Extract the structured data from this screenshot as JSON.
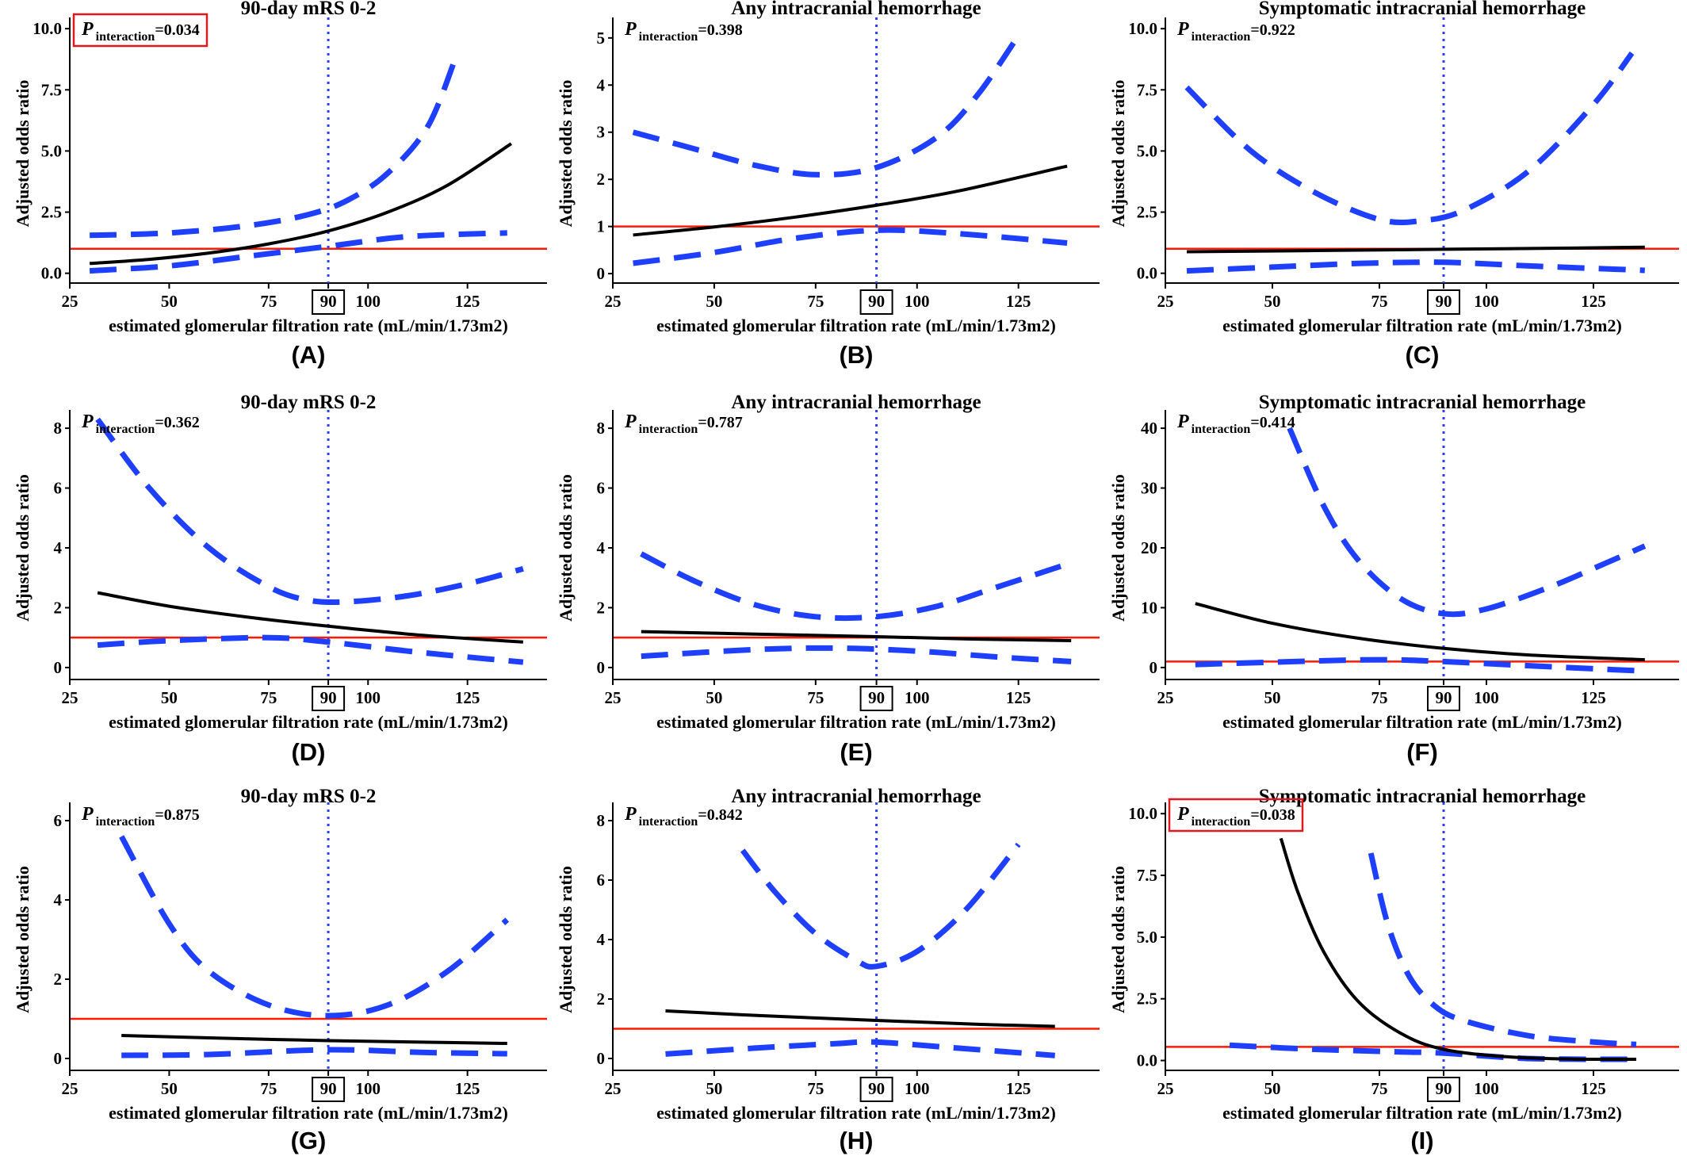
{
  "colors": {
    "estimate": "#000000",
    "confidence_band": "#1f3fff",
    "reference_line": "#ff1a00",
    "cutoff_line": "#2b3cff",
    "highlight_box": "#e0191f"
  },
  "chart_data": [
    {
      "panel": "(A)",
      "type": "line",
      "title": "90-day mRS 0-2",
      "xlabel": "estimated glomerular filtration rate (mL/min/1.73m2)",
      "ylabel": "Adjusted odds ratio",
      "p_label": "P",
      "p_sub": "interaction",
      "p_value": "=0.034",
      "p_highlight": true,
      "xlim": [
        25,
        145
      ],
      "ylim": [
        -0.4,
        10.2
      ],
      "xticks": [
        "25",
        "50",
        "75",
        "90",
        "100",
        "125"
      ],
      "boxed_tick": "90",
      "yticks": [
        "0.0",
        "2.5",
        "5.0",
        "7.5",
        "10.0"
      ],
      "ref_y": 1,
      "cutoff_x": 90,
      "estimate": [
        [
          30,
          0.4
        ],
        [
          45,
          0.57
        ],
        [
          60,
          0.83
        ],
        [
          75,
          1.2
        ],
        [
          90,
          1.73
        ],
        [
          105,
          2.5
        ],
        [
          120,
          3.6
        ],
        [
          136,
          5.3
        ]
      ],
      "ci_upper": [
        [
          30,
          1.55
        ],
        [
          50,
          1.65
        ],
        [
          70,
          1.95
        ],
        [
          85,
          2.4
        ],
        [
          95,
          3.0
        ],
        [
          105,
          4.1
        ],
        [
          115,
          6.0
        ],
        [
          122,
          8.8
        ]
      ],
      "ci_lower": [
        [
          30,
          0.1
        ],
        [
          50,
          0.3
        ],
        [
          70,
          0.7
        ],
        [
          90,
          1.1
        ],
        [
          110,
          1.5
        ],
        [
          135,
          1.65
        ]
      ]
    },
    {
      "panel": "(B)",
      "type": "line",
      "title": "Any intracranial hemorrhage",
      "xlabel": "estimated glomerular filtration rate (mL/min/1.73m2)",
      "ylabel": "Adjusted odds ratio",
      "p_label": "P",
      "p_sub": "interaction",
      "p_value": "=0.398",
      "p_highlight": false,
      "xlim": [
        25,
        145
      ],
      "ylim": [
        -0.2,
        5.3
      ],
      "xticks": [
        "25",
        "50",
        "75",
        "90",
        "100",
        "125"
      ],
      "boxed_tick": "90",
      "yticks": [
        "0",
        "1",
        "2",
        "3",
        "4",
        "5"
      ],
      "ref_y": 1,
      "cutoff_x": 90,
      "estimate": [
        [
          30,
          0.82
        ],
        [
          50,
          0.99
        ],
        [
          70,
          1.2
        ],
        [
          90,
          1.45
        ],
        [
          110,
          1.75
        ],
        [
          137,
          2.28
        ]
      ],
      "ci_upper": [
        [
          30,
          3.0
        ],
        [
          45,
          2.65
        ],
        [
          60,
          2.3
        ],
        [
          75,
          2.1
        ],
        [
          90,
          2.25
        ],
        [
          105,
          2.9
        ],
        [
          115,
          3.8
        ],
        [
          125,
          5.05
        ]
      ],
      "ci_lower": [
        [
          30,
          0.22
        ],
        [
          50,
          0.45
        ],
        [
          70,
          0.75
        ],
        [
          90,
          0.92
        ],
        [
          110,
          0.85
        ],
        [
          137,
          0.65
        ]
      ]
    },
    {
      "panel": "(C)",
      "type": "line",
      "title": "Symptomatic intracranial hemorrhage",
      "xlabel": "estimated glomerular filtration rate (mL/min/1.73m2)",
      "ylabel": "Adjusted odds ratio",
      "p_label": "P",
      "p_sub": "interaction",
      "p_value": "=0.922",
      "p_highlight": false,
      "xlim": [
        25,
        145
      ],
      "ylim": [
        -0.4,
        10.2
      ],
      "xticks": [
        "25",
        "50",
        "75",
        "90",
        "100",
        "125"
      ],
      "boxed_tick": "90",
      "yticks": [
        "0.0",
        "2.5",
        "5.0",
        "7.5",
        "10.0"
      ],
      "ref_y": 1,
      "cutoff_x": 90,
      "estimate": [
        [
          30,
          0.88
        ],
        [
          60,
          0.93
        ],
        [
          90,
          0.98
        ],
        [
          120,
          1.03
        ],
        [
          137,
          1.07
        ]
      ],
      "ci_upper": [
        [
          30,
          7.6
        ],
        [
          45,
          5.0
        ],
        [
          60,
          3.3
        ],
        [
          75,
          2.2
        ],
        [
          85,
          2.15
        ],
        [
          95,
          2.6
        ],
        [
          110,
          4.2
        ],
        [
          125,
          6.9
        ],
        [
          134,
          9.0
        ]
      ],
      "ci_lower": [
        [
          30,
          0.1
        ],
        [
          50,
          0.25
        ],
        [
          70,
          0.4
        ],
        [
          90,
          0.45
        ],
        [
          110,
          0.3
        ],
        [
          137,
          0.12
        ]
      ]
    },
    {
      "panel": "(D)",
      "type": "line",
      "title": "90-day mRS 0-2",
      "xlabel": "estimated glomerular filtration rate (mL/min/1.73m2)",
      "ylabel": "Adjusted odds ratio",
      "p_label": "P",
      "p_sub": "interaction",
      "p_value": "=0.362",
      "p_highlight": false,
      "xlim": [
        25,
        145
      ],
      "ylim": [
        -0.4,
        8.4
      ],
      "xticks": [
        "25",
        "50",
        "75",
        "90",
        "100",
        "125"
      ],
      "boxed_tick": "90",
      "yticks": [
        "0",
        "2",
        "4",
        "6",
        "8"
      ],
      "ref_y": 1,
      "cutoff_x": 90,
      "estimate": [
        [
          32,
          2.5
        ],
        [
          50,
          2.05
        ],
        [
          70,
          1.68
        ],
        [
          90,
          1.38
        ],
        [
          110,
          1.12
        ],
        [
          125,
          0.97
        ],
        [
          139,
          0.85
        ]
      ],
      "ci_upper": [
        [
          32,
          8.3
        ],
        [
          45,
          6.0
        ],
        [
          60,
          4.0
        ],
        [
          75,
          2.7
        ],
        [
          85,
          2.25
        ],
        [
          95,
          2.2
        ],
        [
          110,
          2.4
        ],
        [
          125,
          2.8
        ],
        [
          139,
          3.3
        ]
      ],
      "ci_lower": [
        [
          32,
          0.75
        ],
        [
          50,
          0.9
        ],
        [
          75,
          1.0
        ],
        [
          90,
          0.85
        ],
        [
          110,
          0.55
        ],
        [
          125,
          0.35
        ],
        [
          139,
          0.18
        ]
      ]
    },
    {
      "panel": "(E)",
      "type": "line",
      "title": "Any intracranial hemorrhage",
      "xlabel": "estimated glomerular filtration rate (mL/min/1.73m2)",
      "ylabel": "Adjusted odds ratio",
      "p_label": "P",
      "p_sub": "interaction",
      "p_value": "=0.787",
      "p_highlight": false,
      "xlim": [
        25,
        145
      ],
      "ylim": [
        -0.4,
        8.4
      ],
      "xticks": [
        "25",
        "50",
        "75",
        "90",
        "100",
        "125"
      ],
      "boxed_tick": "90",
      "yticks": [
        "0",
        "2",
        "4",
        "6",
        "8"
      ],
      "ref_y": 1,
      "cutoff_x": 90,
      "estimate": [
        [
          32,
          1.2
        ],
        [
          60,
          1.12
        ],
        [
          90,
          1.03
        ],
        [
          115,
          0.95
        ],
        [
          138,
          0.9
        ]
      ],
      "ci_upper": [
        [
          32,
          3.8
        ],
        [
          45,
          2.9
        ],
        [
          60,
          2.1
        ],
        [
          75,
          1.7
        ],
        [
          90,
          1.7
        ],
        [
          105,
          2.05
        ],
        [
          120,
          2.7
        ],
        [
          138,
          3.5
        ]
      ],
      "ci_lower": [
        [
          32,
          0.38
        ],
        [
          60,
          0.6
        ],
        [
          80,
          0.65
        ],
        [
          100,
          0.55
        ],
        [
          120,
          0.35
        ],
        [
          138,
          0.2
        ]
      ]
    },
    {
      "panel": "(F)",
      "type": "line",
      "title": "Symptomatic intracranial hemorrhage",
      "xlabel": "estimated glomerular filtration rate (mL/min/1.73m2)",
      "ylabel": "Adjusted odds ratio",
      "p_label": "P",
      "p_sub": "interaction",
      "p_value": "=0.414",
      "p_highlight": false,
      "xlim": [
        25,
        145
      ],
      "ylim": [
        -2,
        42
      ],
      "xticks": [
        "25",
        "50",
        "75",
        "90",
        "100",
        "125"
      ],
      "boxed_tick": "90",
      "yticks": [
        "0",
        "10",
        "20",
        "30",
        "40"
      ],
      "ref_y": 1,
      "cutoff_x": 90,
      "estimate": [
        [
          32,
          10.7
        ],
        [
          50,
          7.4
        ],
        [
          70,
          4.9
        ],
        [
          90,
          3.2
        ],
        [
          110,
          2.1
        ],
        [
          137,
          1.3
        ]
      ],
      "ci_upper": [
        [
          54,
          40
        ],
        [
          62,
          27
        ],
        [
          70,
          18
        ],
        [
          80,
          11.5
        ],
        [
          90,
          9.0
        ],
        [
          100,
          9.8
        ],
        [
          115,
          13.5
        ],
        [
          128,
          17.5
        ],
        [
          137,
          20.3
        ]
      ],
      "ci_lower": [
        [
          32,
          0.5
        ],
        [
          55,
          1.0
        ],
        [
          75,
          1.3
        ],
        [
          90,
          1.0
        ],
        [
          110,
          0.3
        ],
        [
          137,
          -0.6
        ]
      ]
    },
    {
      "panel": "(G)",
      "type": "line",
      "title": "90-day mRS 0-2",
      "xlabel": "estimated glomerular filtration rate (mL/min/1.73m2)",
      "ylabel": "Adjusted odds ratio",
      "p_label": "P",
      "p_sub": "interaction",
      "p_value": "=0.875",
      "p_highlight": false,
      "xlim": [
        25,
        145
      ],
      "ylim": [
        -0.3,
        6.3
      ],
      "xticks": [
        "25",
        "50",
        "75",
        "90",
        "100",
        "125"
      ],
      "boxed_tick": "90",
      "yticks": [
        "0",
        "2",
        "4",
        "6"
      ],
      "ref_y": 1,
      "cutoff_x": 90,
      "estimate": [
        [
          38,
          0.58
        ],
        [
          60,
          0.52
        ],
        [
          90,
          0.45
        ],
        [
          115,
          0.41
        ],
        [
          135,
          0.38
        ]
      ],
      "ci_upper": [
        [
          38,
          5.6
        ],
        [
          50,
          3.4
        ],
        [
          60,
          2.2
        ],
        [
          75,
          1.35
        ],
        [
          90,
          1.08
        ],
        [
          105,
          1.35
        ],
        [
          120,
          2.2
        ],
        [
          135,
          3.5
        ]
      ],
      "ci_lower": [
        [
          38,
          0.08
        ],
        [
          60,
          0.1
        ],
        [
          90,
          0.22
        ],
        [
          115,
          0.15
        ],
        [
          135,
          0.12
        ]
      ]
    },
    {
      "panel": "(H)",
      "type": "line",
      "title": "Any intracranial hemorrhage",
      "xlabel": "estimated glomerular filtration rate (mL/min/1.73m2)",
      "ylabel": "Adjusted odds ratio",
      "p_label": "P",
      "p_sub": "interaction",
      "p_value": "=0.842",
      "p_highlight": false,
      "xlim": [
        25,
        145
      ],
      "ylim": [
        -0.4,
        8.4
      ],
      "xticks": [
        "25",
        "50",
        "75",
        "90",
        "100",
        "125"
      ],
      "boxed_tick": "90",
      "yticks": [
        "0",
        "2",
        "4",
        "6",
        "8"
      ],
      "ref_y": 1,
      "cutoff_x": 90,
      "estimate": [
        [
          38,
          1.6
        ],
        [
          60,
          1.45
        ],
        [
          90,
          1.28
        ],
        [
          115,
          1.15
        ],
        [
          134,
          1.08
        ]
      ],
      "ci_upper": [
        [
          57,
          7.0
        ],
        [
          65,
          5.6
        ],
        [
          75,
          4.2
        ],
        [
          85,
          3.3
        ],
        [
          90,
          3.1
        ],
        [
          100,
          3.6
        ],
        [
          112,
          5.0
        ],
        [
          125,
          7.2
        ]
      ],
      "ci_lower": [
        [
          38,
          0.15
        ],
        [
          60,
          0.35
        ],
        [
          80,
          0.5
        ],
        [
          90,
          0.55
        ],
        [
          110,
          0.35
        ],
        [
          134,
          0.1
        ]
      ]
    },
    {
      "panel": "(I)",
      "type": "line",
      "title": "Symptomatic intracranial hemorrhage",
      "xlabel": "estimated glomerular filtration rate (mL/min/1.73m2)",
      "ylabel": "Adjusted odds ratio",
      "p_label": "P",
      "p_sub": "interaction",
      "p_value": "=0.038",
      "p_highlight": true,
      "xlim": [
        25,
        145
      ],
      "ylim": [
        -0.4,
        10.2
      ],
      "xticks": [
        "25",
        "50",
        "75",
        "90",
        "100",
        "125"
      ],
      "boxed_tick": "90",
      "yticks": [
        "0.0",
        "2.5",
        "5.0",
        "7.5",
        "10.0"
      ],
      "ref_y": 0.55,
      "cutoff_x": 90,
      "estimate": [
        [
          52,
          9.0
        ],
        [
          56,
          6.8
        ],
        [
          62,
          4.4
        ],
        [
          70,
          2.4
        ],
        [
          80,
          1.1
        ],
        [
          90,
          0.45
        ],
        [
          105,
          0.15
        ],
        [
          120,
          0.06
        ],
        [
          135,
          0.05
        ]
      ],
      "ci_upper": [
        [
          73,
          8.4
        ],
        [
          77,
          5.5
        ],
        [
          82,
          3.4
        ],
        [
          88,
          2.2
        ],
        [
          95,
          1.6
        ],
        [
          110,
          1.0
        ],
        [
          125,
          0.75
        ],
        [
          135,
          0.65
        ]
      ],
      "ci_lower": [
        [
          40,
          0.62
        ],
        [
          60,
          0.45
        ],
        [
          80,
          0.35
        ],
        [
          90,
          0.3
        ],
        [
          110,
          0.08
        ],
        [
          135,
          0.05
        ]
      ]
    }
  ]
}
